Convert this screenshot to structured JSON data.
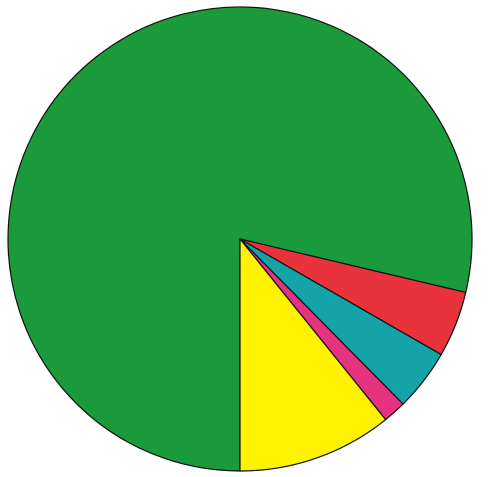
{
  "chart_data": {
    "type": "pie",
    "start_angle_deg": 90,
    "direction": "counterclockwise",
    "slices": [
      {
        "value": 78.7,
        "color": "#1a9a3a"
      },
      {
        "value": 4.6,
        "color": "#e8323c"
      },
      {
        "value": 4.3,
        "color": "#14a3a8"
      },
      {
        "value": 1.6,
        "color": "#e6337f"
      },
      {
        "value": 10.8,
        "color": "#fff200"
      }
    ]
  }
}
